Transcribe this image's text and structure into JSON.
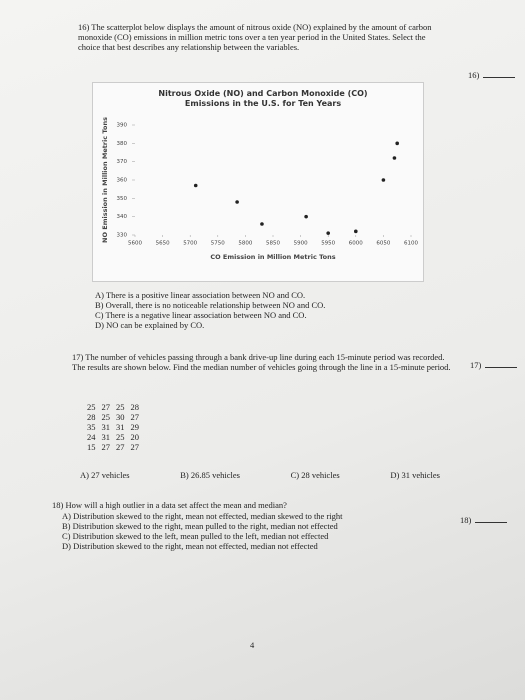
{
  "chart_data": {
    "type": "scatter",
    "title": "Nitrous Oxide (NO) and Carbon Monoxide (CO) Emissions in the U.S. for Ten Years",
    "x_label": "CO Emission in Million Metric Tons",
    "y_label": "NO Emission in Million Metric Tons",
    "x": [
      5710,
      5785,
      5830,
      5910,
      5950,
      6000,
      6050,
      6070,
      6075
    ],
    "values": [
      357,
      348,
      336,
      340,
      331,
      332,
      360,
      372,
      380
    ],
    "color": "#222222",
    "xlim": [
      5600,
      6100
    ],
    "xticks": [
      5600,
      5650,
      5700,
      5750,
      5800,
      5850,
      5900,
      5950,
      6000,
      6050,
      6100
    ],
    "ylim": [
      330,
      390
    ],
    "yticks": [
      330,
      340,
      350,
      360,
      370,
      380,
      390
    ]
  },
  "document": {
    "q16": {
      "text": "16) The scatterplot below displays the amount of nitrous oxide (NO) explained by the amount of carbon monoxide (CO) emissions in million metric tons over a ten year period in the United States. Select the choice that best describes any relationship between the variables.",
      "answer_label": "16)",
      "options": [
        "A) There is a positive linear association between NO and CO.",
        "B) Overall, there is no noticeable relationship between NO and CO.",
        "C) There is a negative linear association between NO and CO.",
        "D) NO can be explained by CO."
      ]
    },
    "q17": {
      "text": "17) The number of vehicles passing through a bank drive-up line during each 15-minute period was recorded. The results are shown below. Find the median number of vehicles going through the line in a 15-minute period.",
      "answer_label": "17)",
      "rows": [
        [
          25,
          27,
          25,
          28
        ],
        [
          28,
          25,
          30,
          27
        ],
        [
          35,
          31,
          31,
          29
        ],
        [
          24,
          31,
          25,
          20
        ],
        [
          15,
          27,
          27,
          27
        ]
      ],
      "options": [
        "A) 27 vehicles",
        "B) 26.85 vehicles",
        "C) 28 vehicles",
        "D) 31 vehicles"
      ]
    },
    "q18": {
      "text": "18) How will a high outlier in a data set affect the mean and median?",
      "answer_label": "18)",
      "options": [
        "A) Distribution skewed to the right, mean not effected, median skewed to the right",
        "B) Distribution skewed to the right, mean pulled to the right, median not effected",
        "C) Distribution skewed to the left, mean pulled to the left, median not effected",
        "D) Distribution skewed to the right, mean not effected, median not effected"
      ]
    },
    "page_number": "4"
  }
}
